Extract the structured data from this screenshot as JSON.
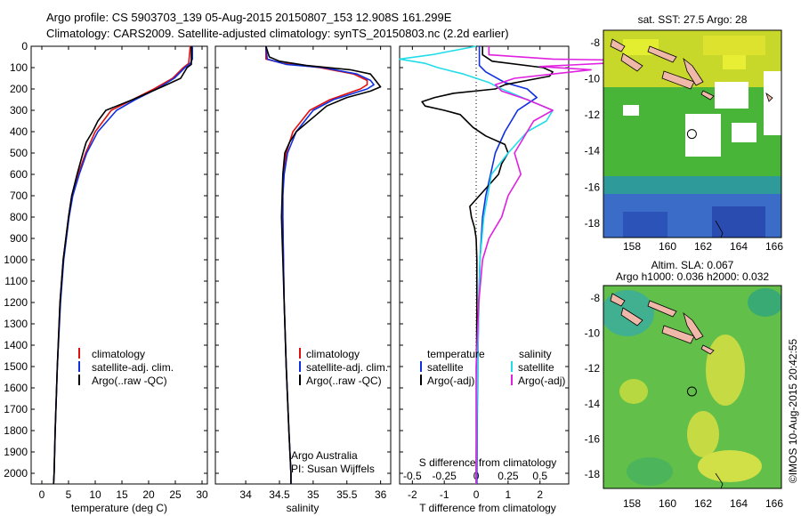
{
  "header": {
    "line1": "Argo profile: CS 5903703_139 05-Aug-2015 20150807_153 12.908S 161.299E",
    "line2": "Climatology: CARS2009. Satellite-adjusted climatology: synTS_20150803.nc (2.2d earlier)"
  },
  "watermark": "©IMOS 10-Aug-2015 20:42:55",
  "colors": {
    "climatology": "#e01010",
    "satellite": "#1030e0",
    "argo": "#000000",
    "salinity_sat": "#22dde8",
    "salinity_argo": "#e020e0"
  },
  "chart_data": [
    {
      "type": "line",
      "id": "temperature",
      "xlabel": "temperature (deg C)",
      "ylabel": "",
      "xlim": [
        -2,
        31
      ],
      "ylim": [
        2050,
        0
      ],
      "xticks": [
        "0",
        "5",
        "10",
        "15",
        "20",
        "25",
        "30"
      ],
      "yticks": [
        "0",
        "100",
        "200",
        "300",
        "400",
        "500",
        "600",
        "700",
        "800",
        "900",
        "1000",
        "1100",
        "1200",
        "1300",
        "1400",
        "1500",
        "1600",
        "1700",
        "1800",
        "1900",
        "2000"
      ],
      "legend": [
        "climatology",
        "satellite-adj. clim.",
        "Argo(..raw -QC)"
      ],
      "series": [
        {
          "name": "climatology",
          "color": "#e01010",
          "depth": [
            0,
            80,
            100,
            150,
            200,
            250,
            300,
            400,
            500,
            600,
            700,
            800,
            1000,
            1200,
            1500,
            1800,
            2000,
            2050
          ],
          "values": [
            27.8,
            27.5,
            26.5,
            24.5,
            21,
            17,
            13,
            10,
            8.2,
            6.8,
            5.6,
            5,
            4,
            3.4,
            2.9,
            2.5,
            2.3,
            2.2
          ]
        },
        {
          "name": "satellite-adj. clim.",
          "color": "#1030e0",
          "depth": [
            0,
            60,
            80,
            100,
            150,
            200,
            250,
            300,
            400,
            500,
            600,
            700,
            800,
            1000,
            1200,
            1500,
            1800,
            2000,
            2050
          ],
          "values": [
            28.2,
            28.2,
            27.8,
            26.8,
            24.8,
            21.5,
            17.5,
            14,
            10.5,
            8.4,
            7,
            5.8,
            5.1,
            4.1,
            3.5,
            2.9,
            2.5,
            2.3,
            2.2
          ]
        },
        {
          "name": "Argo(..raw -QC)",
          "color": "#000000",
          "depth": [
            0,
            60,
            85,
            100,
            150,
            190,
            250,
            300,
            350,
            400,
            450,
            500,
            600,
            700,
            800,
            1000,
            1200,
            1500,
            1800,
            2000,
            2050
          ],
          "values": [
            28,
            28,
            28,
            27.2,
            26,
            22.5,
            17,
            12,
            10.5,
            9.5,
            8.3,
            7.7,
            6.6,
            5.6,
            5,
            4,
            3.4,
            2.9,
            2.5,
            2.3,
            2.2
          ]
        }
      ]
    },
    {
      "type": "line",
      "id": "salinity",
      "xlabel": "salinity",
      "xlim": [
        33.55,
        36.15
      ],
      "ylim": [
        2050,
        0
      ],
      "xticks": [
        "34",
        "34.5",
        "35",
        "35.5",
        "36"
      ],
      "legend": [
        "climatology",
        "satellite-adj. clim.",
        "Argo(..raw -QC)"
      ],
      "annotation": [
        "Argo Australia",
        "PI: Susan Wijffels"
      ],
      "series": [
        {
          "name": "climatology",
          "color": "#e01010",
          "depth": [
            0,
            60,
            80,
            100,
            130,
            160,
            180,
            200,
            250,
            300,
            400,
            500,
            600,
            700,
            800,
            1000,
            1200,
            1500,
            1800,
            2000,
            2050
          ],
          "values": [
            34.3,
            34.3,
            34.55,
            35.1,
            35.6,
            35.8,
            35.8,
            35.7,
            35.25,
            34.95,
            34.7,
            34.6,
            34.56,
            34.55,
            34.55,
            34.56,
            34.57,
            34.6,
            34.64,
            34.67,
            34.67
          ]
        },
        {
          "name": "satellite-adj. clim.",
          "color": "#1030e0",
          "depth": [
            0,
            60,
            85,
            100,
            130,
            160,
            180,
            200,
            250,
            300,
            400,
            500,
            600,
            700,
            800,
            1000,
            1200,
            1500,
            1800,
            2000,
            2050
          ],
          "values": [
            34.3,
            34.32,
            34.6,
            35.15,
            35.65,
            35.85,
            35.9,
            35.8,
            35.3,
            35,
            34.75,
            34.62,
            34.57,
            34.55,
            34.55,
            34.56,
            34.57,
            34.6,
            34.64,
            34.67,
            34.67
          ]
        },
        {
          "name": "Argo(..raw -QC)",
          "color": "#000000",
          "depth": [
            0,
            50,
            70,
            90,
            110,
            130,
            150,
            170,
            190,
            210,
            240,
            280,
            320,
            360,
            400,
            450,
            500,
            600,
            700,
            800,
            900,
            1000,
            1200,
            1500,
            1800,
            2000,
            2050
          ],
          "values": [
            34.3,
            34.35,
            34.5,
            34.9,
            35.55,
            35.85,
            35.9,
            35.95,
            36.0,
            35.85,
            35.5,
            35.2,
            35.05,
            34.9,
            34.75,
            34.65,
            34.58,
            34.55,
            34.54,
            34.53,
            34.54,
            34.55,
            34.57,
            34.6,
            34.64,
            34.67,
            34.67
          ]
        }
      ]
    },
    {
      "type": "line",
      "id": "difference",
      "xlabel": "T difference from climatology",
      "xlabel_top": "S difference from climatology",
      "xlim": [
        -2.4,
        2.9
      ],
      "ylim": [
        2050,
        0
      ],
      "xticks": [
        "-2",
        "-1",
        "0",
        "1",
        "2"
      ],
      "xticks_s": [
        "-0.5",
        "-0.25",
        "0",
        "0.25",
        "0.5"
      ],
      "legend_headers": [
        "temperature",
        "salinity"
      ],
      "legend": [
        "satellite",
        "Argo(-adj)",
        "satellite",
        "Argo(-adj)"
      ],
      "series": [
        {
          "name": "satellite",
          "group": "temperature",
          "color": "#1030e0",
          "depth": [
            0,
            60,
            90,
            120,
            170,
            200,
            240,
            270,
            300,
            350,
            400,
            450,
            500,
            600,
            700,
            800,
            1000,
            1200,
            1500,
            1800,
            2000,
            2050
          ],
          "values": [
            0.1,
            0.1,
            0.1,
            0.3,
            0.9,
            1.6,
            1.9,
            1.6,
            1.3,
            1.1,
            0.9,
            0.75,
            0.6,
            0.45,
            0.3,
            0.2,
            0.12,
            0.08,
            0.05,
            0.03,
            0.02,
            0.02
          ]
        },
        {
          "name": "Argo(-adj)",
          "group": "temperature",
          "color": "#000000",
          "depth": [
            0,
            40,
            70,
            100,
            120,
            140,
            160,
            180,
            200,
            220,
            240,
            260,
            280,
            300,
            320,
            350,
            380,
            420,
            460,
            500,
            550,
            600,
            650,
            700,
            750,
            800,
            850,
            900,
            1000,
            1200,
            1500,
            1800,
            2000,
            2050
          ],
          "values": [
            0.2,
            0.2,
            0.5,
            2.1,
            2.4,
            2.3,
            1.6,
            0.9,
            0.6,
            -0.7,
            -1.3,
            -1.7,
            -1.6,
            -1.0,
            -0.5,
            -0.3,
            -0.1,
            0.3,
            0.9,
            1.0,
            0.8,
            0.7,
            0.4,
            0.1,
            -0.2,
            -0.15,
            -0.05,
            0.0,
            0.02,
            0.02,
            0.01,
            0.01,
            0.0,
            0.0
          ]
        },
        {
          "name": "satellite",
          "group": "salinity",
          "color": "#22dde8",
          "depth": [
            0,
            40,
            60,
            80,
            100,
            130,
            170,
            200,
            250,
            300,
            350,
            400,
            500,
            600,
            800,
            1000,
            1500,
            2000,
            2050
          ],
          "values": [
            0.0,
            -0.35,
            -0.6,
            -0.4,
            -0.3,
            -0.1,
            0.1,
            0.2,
            0.4,
            0.6,
            0.55,
            0.4,
            0.25,
            0.12,
            0.06,
            0.03,
            0.01,
            0.0,
            0.0
          ]
        },
        {
          "name": "Argo(-adj)",
          "group": "salinity",
          "color": "#e020e0",
          "depth": [
            0,
            40,
            60,
            70,
            80,
            95,
            110,
            130,
            150,
            180,
            210,
            250,
            300,
            350,
            400,
            500,
            600,
            700,
            800,
            900,
            1000,
            1200,
            1500,
            2000,
            2050
          ],
          "values": [
            0.1,
            0.1,
            0.6,
            1.6,
            1.0,
            0.5,
            0.9,
            0.6,
            0.3,
            0.15,
            0.2,
            0.4,
            0.6,
            0.45,
            0.4,
            0.3,
            0.35,
            0.25,
            0.2,
            0.1,
            0.05,
            0.02,
            0.0,
            0.0,
            0.0
          ]
        }
      ]
    },
    {
      "type": "heatmap",
      "id": "sst-map",
      "title": "sat. SST: 27.5  Argo: 28",
      "xticks": [
        "158",
        "160",
        "162",
        "164",
        "166"
      ],
      "yticks": [
        "-8",
        "-10",
        "-12",
        "-14",
        "-16",
        "-18"
      ],
      "marker": {
        "lon": 161.299,
        "lat": -12.908
      }
    },
    {
      "type": "heatmap",
      "id": "sla-map",
      "title": "Altim. SLA: 0.067",
      "subtitle": "Argo h1000: 0.036 h2000: 0.032",
      "xticks": [
        "158",
        "160",
        "162",
        "164",
        "166"
      ],
      "yticks": [
        "-8",
        "-10",
        "-12",
        "-14",
        "-16",
        "-18"
      ],
      "marker": {
        "lon": 161.299,
        "lat": -12.908
      }
    }
  ]
}
